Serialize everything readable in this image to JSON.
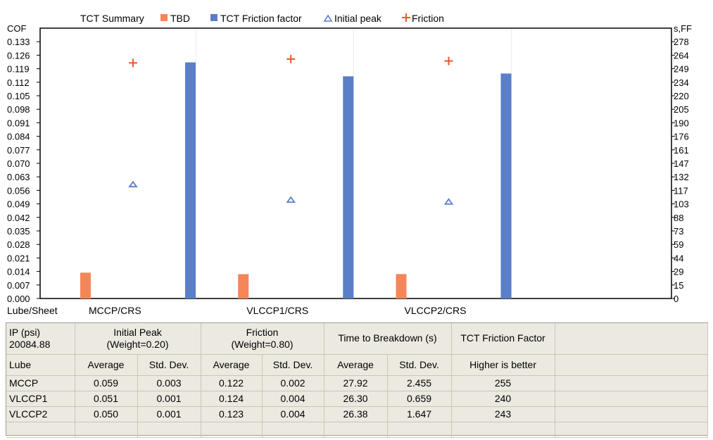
{
  "chart_data": {
    "type": "bar",
    "title": "TCT Summary",
    "ylabel": "COF",
    "y2label": "s,FF",
    "xlabel": "Lube/Sheet",
    "categories": [
      "MCCP/CRS",
      "VLCCP1/CRS",
      "VLCCP2/CRS"
    ],
    "ylim": [
      0,
      0.14
    ],
    "y2lim": [
      0,
      292
    ],
    "yticks": [
      "0.000",
      "0.007",
      "0.014",
      "0.021",
      "0.028",
      "0.035",
      "0.042",
      "0.049",
      "0.056",
      "0.063",
      "0.070",
      "0.077",
      "0.084",
      "0.091",
      "0.098",
      "0.105",
      "0.112",
      "0.119",
      "0.126",
      "0.133"
    ],
    "y2ticks": [
      "0",
      "15",
      "29",
      "44",
      "59",
      "73",
      "88",
      "103",
      "117",
      "132",
      "147",
      "161",
      "176",
      "190",
      "205",
      "220",
      "234",
      "249",
      "264",
      "278"
    ],
    "legend_position": "top",
    "series": [
      {
        "name": "TBD",
        "kind": "bar",
        "axis": "right",
        "color": "#f4865a",
        "values": [
          27.92,
          26.3,
          26.38
        ]
      },
      {
        "name": "TCT Friction factor",
        "kind": "bar",
        "axis": "right",
        "color": "#5b7ec9",
        "values": [
          255,
          240,
          243
        ]
      },
      {
        "name": "Initial peak",
        "kind": "marker",
        "marker": "triangle",
        "axis": "left",
        "color": "#5b7ec9",
        "values": [
          0.059,
          0.051,
          0.05
        ]
      },
      {
        "name": "Friction",
        "kind": "marker",
        "marker": "cross",
        "axis": "left",
        "color": "#e8582a",
        "values": [
          0.122,
          0.124,
          0.123
        ]
      }
    ]
  },
  "table": {
    "ip_label": "IP    (psi)",
    "ip_value": "20084.88",
    "groups": {
      "initial_peak": {
        "title": "Initial Peak",
        "weight": "(Weight=0.20)"
      },
      "friction": {
        "title": "Friction",
        "weight": "(Weight=0.80)"
      },
      "ttb": {
        "title": "Time to Breakdown (s)"
      },
      "tct": {
        "title": "TCT Friction Factor"
      }
    },
    "subheaders": {
      "lube": "Lube",
      "average": "Average",
      "stddev": "Std. Dev.",
      "higher": "Higher is better"
    },
    "rows": [
      {
        "lube": "MCCP",
        "ip_avg": "0.059",
        "ip_sd": "0.003",
        "fr_avg": "0.122",
        "fr_sd": "0.002",
        "ttb_avg": "27.92",
        "ttb_sd": "2.455",
        "tct": "255"
      },
      {
        "lube": "VLCCP1",
        "ip_avg": "0.051",
        "ip_sd": "0.001",
        "fr_avg": "0.124",
        "fr_sd": "0.004",
        "ttb_avg": "26.30",
        "ttb_sd": "0.659",
        "tct": "240"
      },
      {
        "lube": "VLCCP2",
        "ip_avg": "0.050",
        "ip_sd": "0.001",
        "fr_avg": "0.123",
        "fr_sd": "0.004",
        "ttb_avg": "26.38",
        "ttb_sd": "1.647",
        "tct": "243"
      }
    ]
  }
}
